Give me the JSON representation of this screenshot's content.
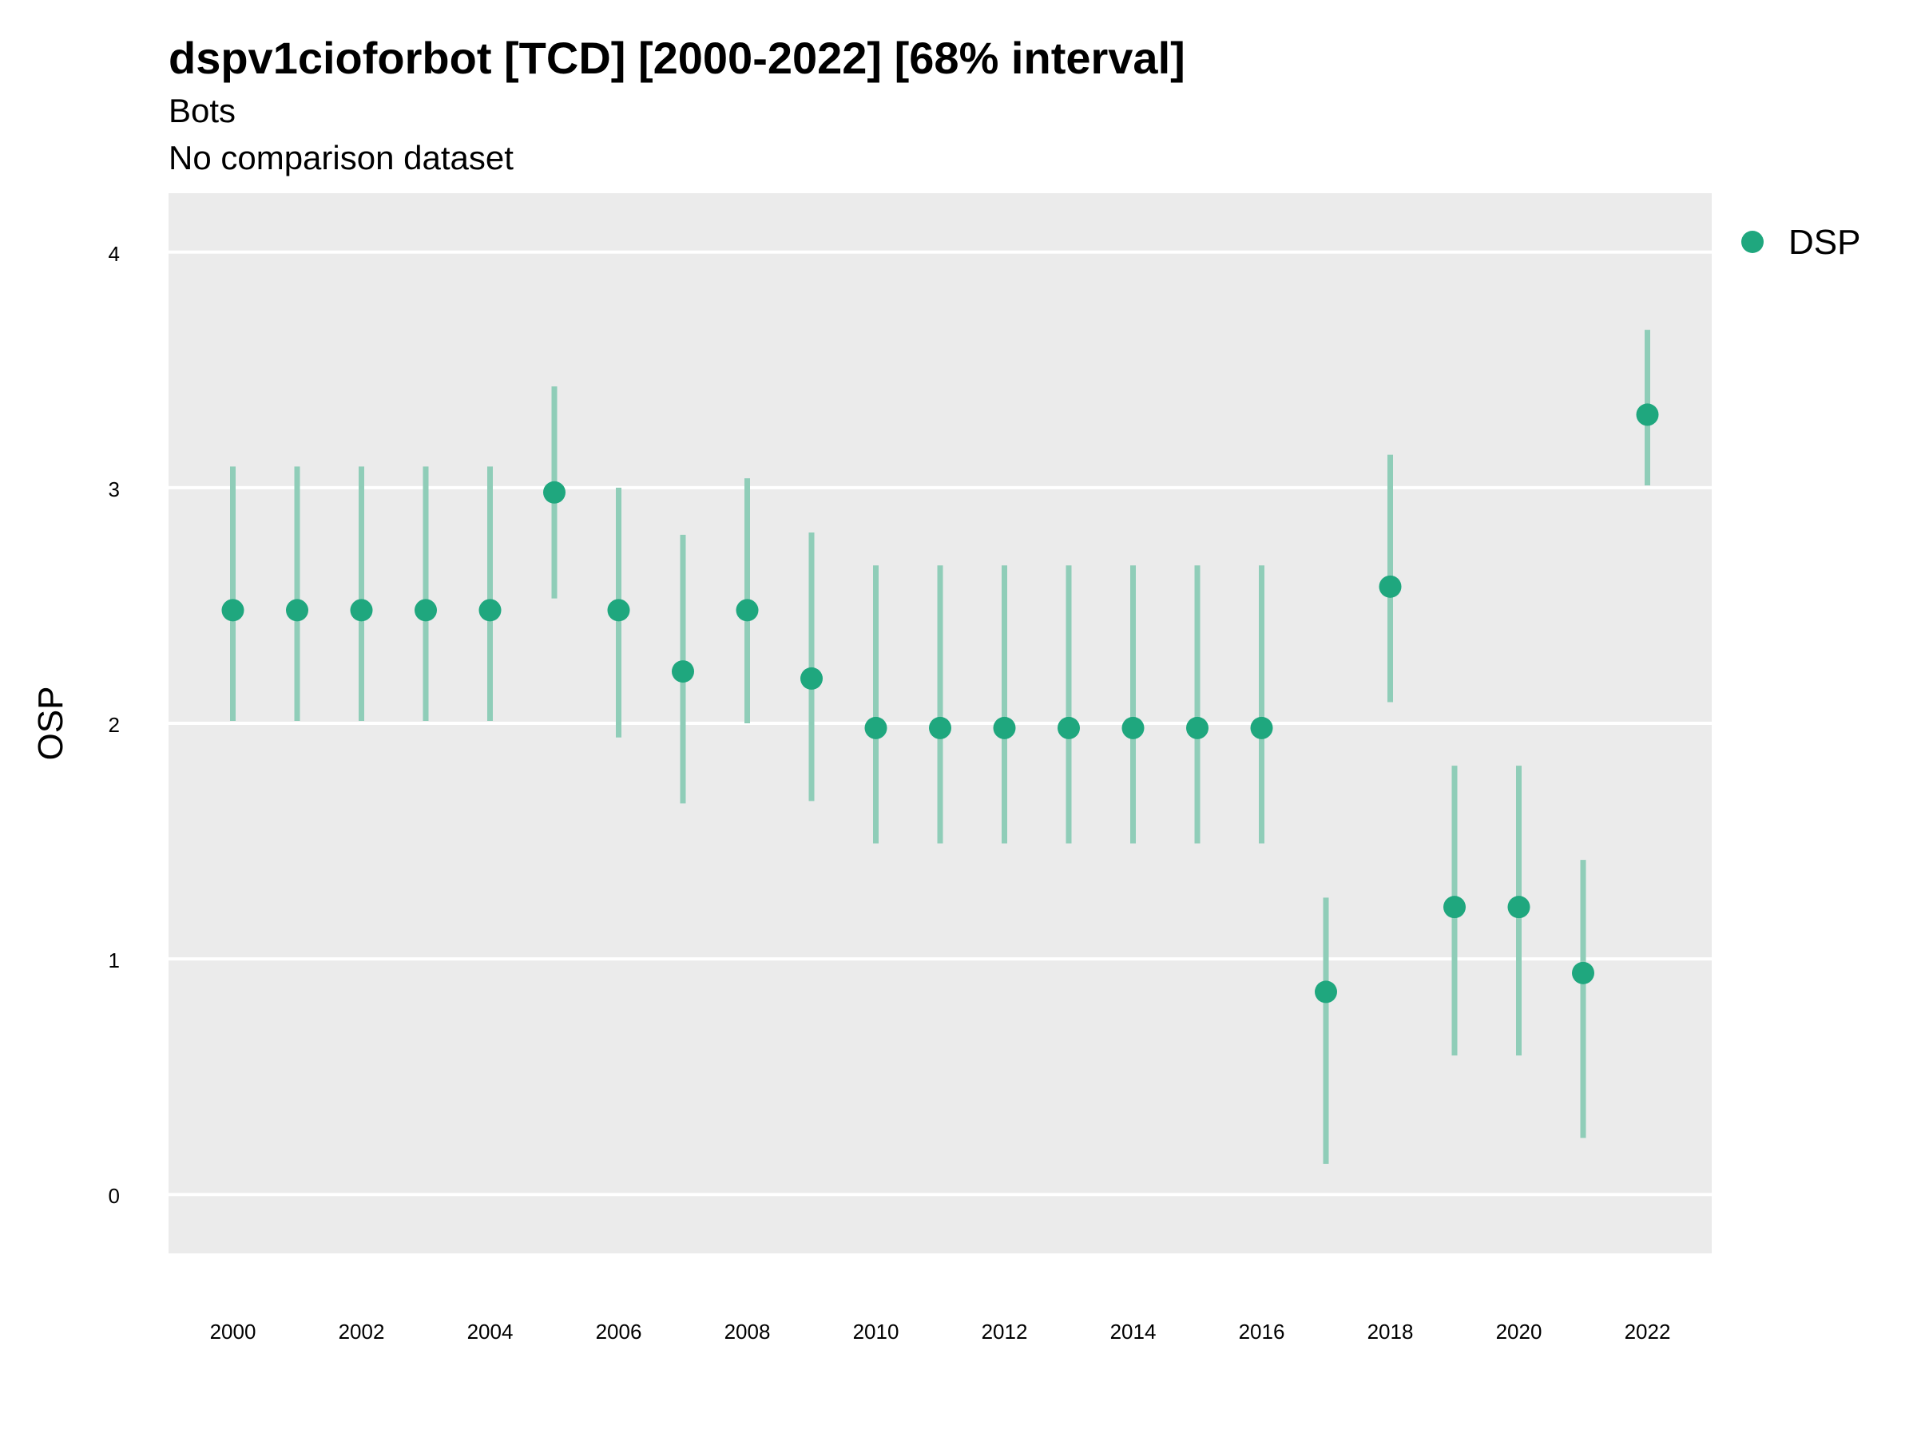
{
  "chart_data": {
    "type": "scatter",
    "title": "dspv1cioforbot [TCD] [2000-2022] [68% interval]",
    "subtitle": "Bots",
    "caption": "No comparison dataset",
    "xlabel": "",
    "ylabel": "OSP",
    "ylim": [
      -0.25,
      4.25
    ],
    "y_ticks": [
      0,
      1,
      2,
      3,
      4
    ],
    "x_ticks": [
      2000,
      2002,
      2004,
      2006,
      2008,
      2010,
      2012,
      2014,
      2016,
      2018,
      2020,
      2022
    ],
    "x_tick_labels": [
      "2000",
      "2002",
      "2004",
      "2006",
      "2008",
      "2010",
      "2012",
      "2014",
      "2016",
      "2018",
      "2020",
      "2022"
    ],
    "y_tick_labels": [
      "0",
      "1",
      "2",
      "3",
      "4"
    ],
    "grid": true,
    "legend_position": "top-right",
    "colors": {
      "point": "#1fa77e",
      "interval": "#8fcdb8",
      "panel": "#ebebeb",
      "grid": "#ffffff"
    },
    "series": [
      {
        "name": "DSP",
        "x": [
          2000,
          2001,
          2002,
          2003,
          2004,
          2005,
          2006,
          2007,
          2008,
          2009,
          2010,
          2011,
          2012,
          2013,
          2014,
          2015,
          2016,
          2017,
          2018,
          2019,
          2020,
          2021,
          2022
        ],
        "y": [
          2.48,
          2.48,
          2.48,
          2.48,
          2.48,
          2.98,
          2.48,
          2.22,
          2.48,
          2.19,
          1.98,
          1.98,
          1.98,
          1.98,
          1.98,
          1.98,
          1.98,
          0.86,
          2.58,
          1.22,
          1.22,
          0.94,
          3.31
        ],
        "lower": [
          2.01,
          2.01,
          2.01,
          2.01,
          2.01,
          2.53,
          1.94,
          1.66,
          2.0,
          1.67,
          1.49,
          1.49,
          1.49,
          1.49,
          1.49,
          1.49,
          1.49,
          0.13,
          2.09,
          0.59,
          0.59,
          0.24,
          3.01
        ],
        "upper": [
          3.09,
          3.09,
          3.09,
          3.09,
          3.09,
          3.43,
          3.0,
          2.8,
          3.04,
          2.81,
          2.67,
          2.67,
          2.67,
          2.67,
          2.67,
          2.67,
          2.67,
          1.26,
          3.14,
          1.82,
          1.82,
          1.42,
          3.67
        ]
      }
    ]
  }
}
